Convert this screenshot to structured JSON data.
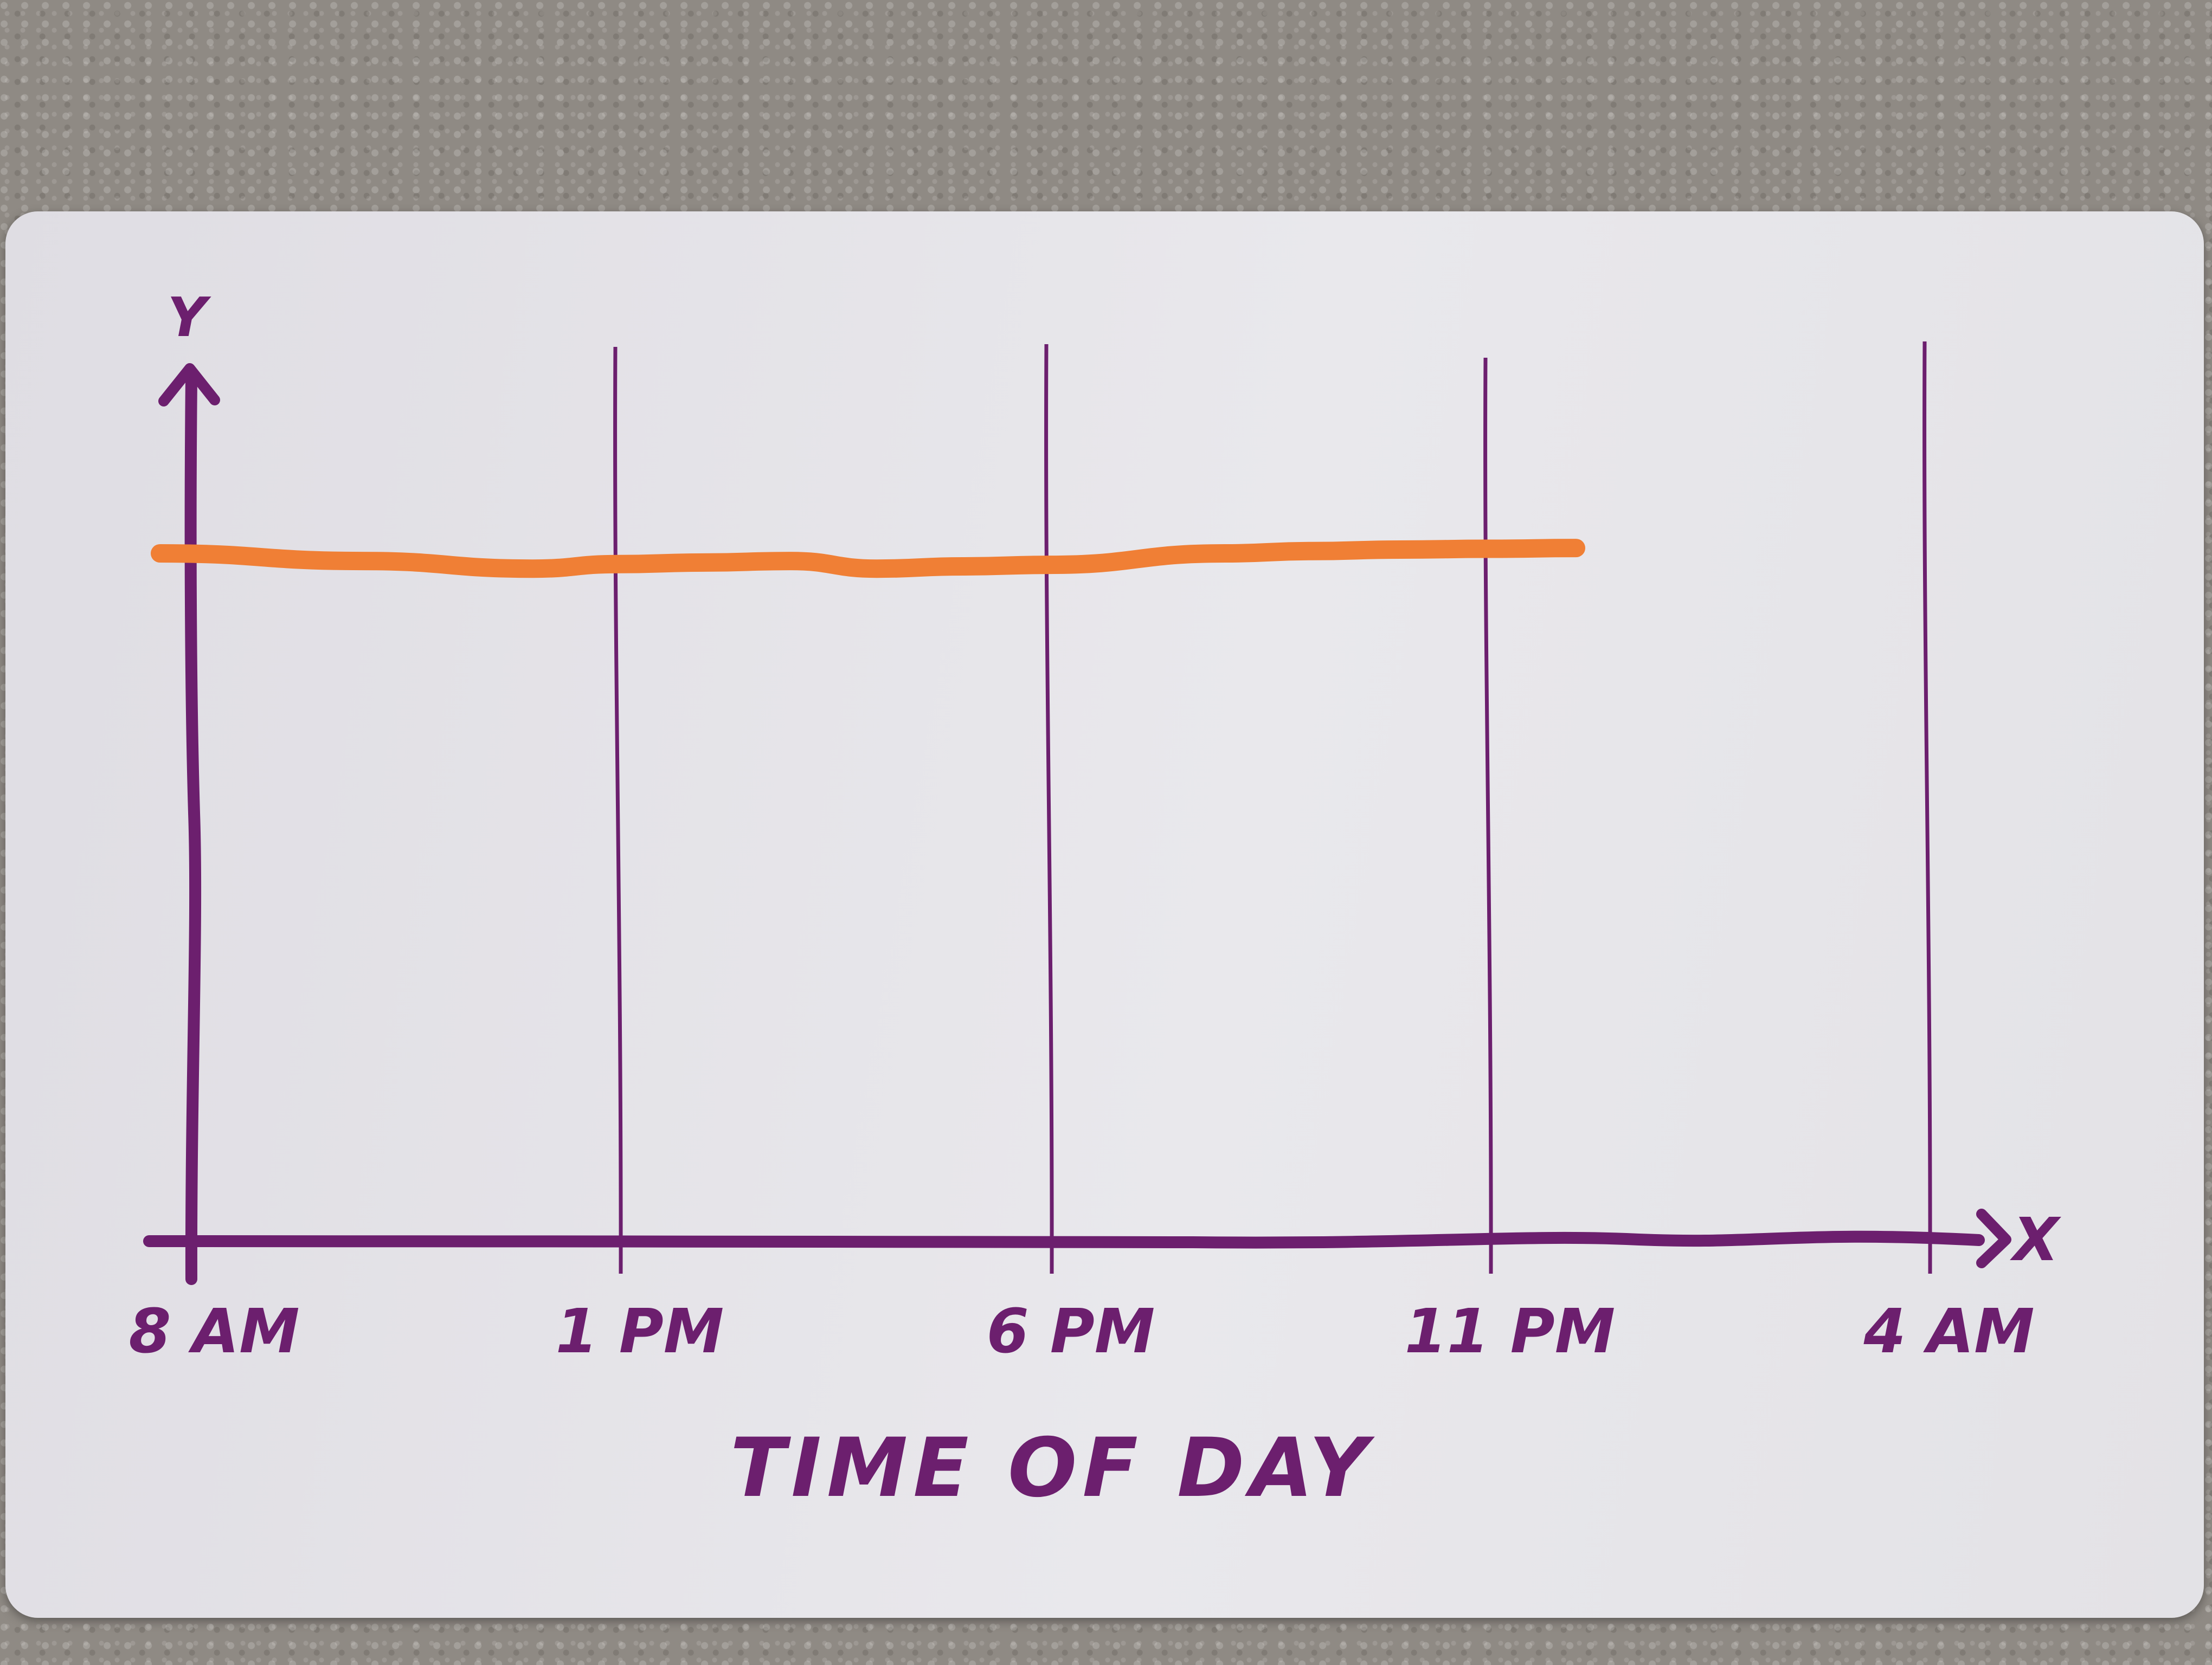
{
  "chart_data": {
    "type": "line",
    "title": "",
    "xlabel": "TIME OF DAY",
    "ylabel": "Y",
    "x_axis_letter": "X",
    "categories": [
      "8 AM",
      "1 PM",
      "6 PM",
      "11 PM",
      "4 AM"
    ],
    "series": [
      {
        "name": "",
        "color": "#f07f35",
        "x": [
          0,
          2,
          4,
          5,
          6,
          7,
          8,
          9,
          10,
          12,
          13,
          14,
          15,
          16
        ],
        "y": [
          90,
          89,
          88,
          88.6,
          88.8,
          89,
          88,
          88.3,
          88.5,
          90,
          90.3,
          90.5,
          90.6,
          90.7
        ]
      }
    ],
    "x_range_hours": [
      0,
      20.5
    ],
    "ylim": [
      0,
      100
    ],
    "grid": "vertical lines at each tick",
    "axis_color": "#6c1f6e"
  }
}
